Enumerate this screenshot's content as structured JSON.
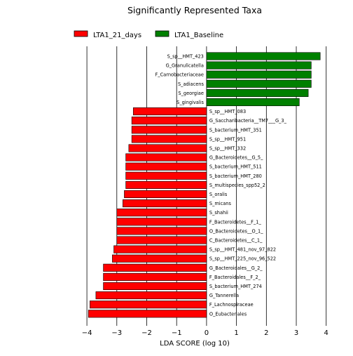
{
  "chart_data": {
    "type": "bar",
    "orientation": "horizontal",
    "title": "Significantly Represented Taxa",
    "xlabel": "LDA SCORE (log 10)",
    "ylabel": "",
    "xlim": [
      -4.4,
      4.1
    ],
    "xticks": [
      -4,
      -3,
      -2,
      -1,
      0,
      1,
      2,
      3,
      4
    ],
    "xtick_labels": [
      "−4",
      "−3",
      "−2",
      "−1",
      "0",
      "1",
      "2",
      "3",
      "4"
    ],
    "grid": "vertical lines at integer ticks",
    "legend_position": "top-left",
    "series": [
      {
        "name": "LTA1_21_days",
        "color": "#ff0000"
      },
      {
        "name": "LTA1_Baseline",
        "color": "#008000"
      }
    ],
    "bars": [
      {
        "label": "S_sp__HMT_423",
        "value": 3.8,
        "series": "LTA1_Baseline"
      },
      {
        "label": "G_Granulicatella",
        "value": 3.5,
        "series": "LTA1_Baseline"
      },
      {
        "label": "F_Carnobacteriaceae",
        "value": 3.5,
        "series": "LTA1_Baseline"
      },
      {
        "label": "S_adiacens",
        "value": 3.5,
        "series": "LTA1_Baseline"
      },
      {
        "label": "S_georgiae",
        "value": 3.4,
        "series": "LTA1_Baseline"
      },
      {
        "label": "S_gingivalis",
        "value": 3.1,
        "series": "LTA1_Baseline"
      },
      {
        "label": "S_sp__HMT_083",
        "value": -2.45,
        "series": "LTA1_21_days"
      },
      {
        "label": "G_Saccharibacteria__TM7___G_3_",
        "value": -2.5,
        "series": "LTA1_21_days"
      },
      {
        "label": "S_bacterium_HMT_351",
        "value": -2.5,
        "series": "LTA1_21_days"
      },
      {
        "label": "S_sp__HMT_951",
        "value": -2.5,
        "series": "LTA1_21_days"
      },
      {
        "label": "S_sp__HMT_332",
        "value": -2.6,
        "series": "LTA1_21_days"
      },
      {
        "label": "G_Bacteroidetes__G_5_",
        "value": -2.7,
        "series": "LTA1_21_days"
      },
      {
        "label": "S_bacterium_HMT_511",
        "value": -2.7,
        "series": "LTA1_21_days"
      },
      {
        "label": "S_bacterium_HMT_280",
        "value": -2.7,
        "series": "LTA1_21_days"
      },
      {
        "label": "S_multispecies_spp52_2",
        "value": -2.7,
        "series": "LTA1_21_days"
      },
      {
        "label": "S_oralis",
        "value": -2.75,
        "series": "LTA1_21_days"
      },
      {
        "label": "S_micans",
        "value": -2.8,
        "series": "LTA1_21_days"
      },
      {
        "label": "S_shahii",
        "value": -3.0,
        "series": "LTA1_21_days"
      },
      {
        "label": "F_Bacteroidetes__F_1_",
        "value": -3.0,
        "series": "LTA1_21_days"
      },
      {
        "label": "O_Bacteroidetes__O_1_",
        "value": -3.0,
        "series": "LTA1_21_days"
      },
      {
        "label": "C_Bacteroidetes__C_1_",
        "value": -3.0,
        "series": "LTA1_21_days"
      },
      {
        "label": "S_sp__HMT_481_nov_97_822",
        "value": -3.1,
        "series": "LTA1_21_days"
      },
      {
        "label": "S_sp__HMT_225_nov_96_522",
        "value": -3.15,
        "series": "LTA1_21_days"
      },
      {
        "label": "G_Bacteroidales__G_2_",
        "value": -3.45,
        "series": "LTA1_21_days"
      },
      {
        "label": "F_Bacteroidales__F_2_",
        "value": -3.45,
        "series": "LTA1_21_days"
      },
      {
        "label": "S_bacterium_HMT_274",
        "value": -3.45,
        "series": "LTA1_21_days"
      },
      {
        "label": "G_Tannerella",
        "value": -3.7,
        "series": "LTA1_21_days"
      },
      {
        "label": "F_Lachnospiraceae",
        "value": -3.9,
        "series": "LTA1_21_days"
      },
      {
        "label": "O_Eubacteriales",
        "value": -3.95,
        "series": "LTA1_21_days"
      }
    ]
  }
}
